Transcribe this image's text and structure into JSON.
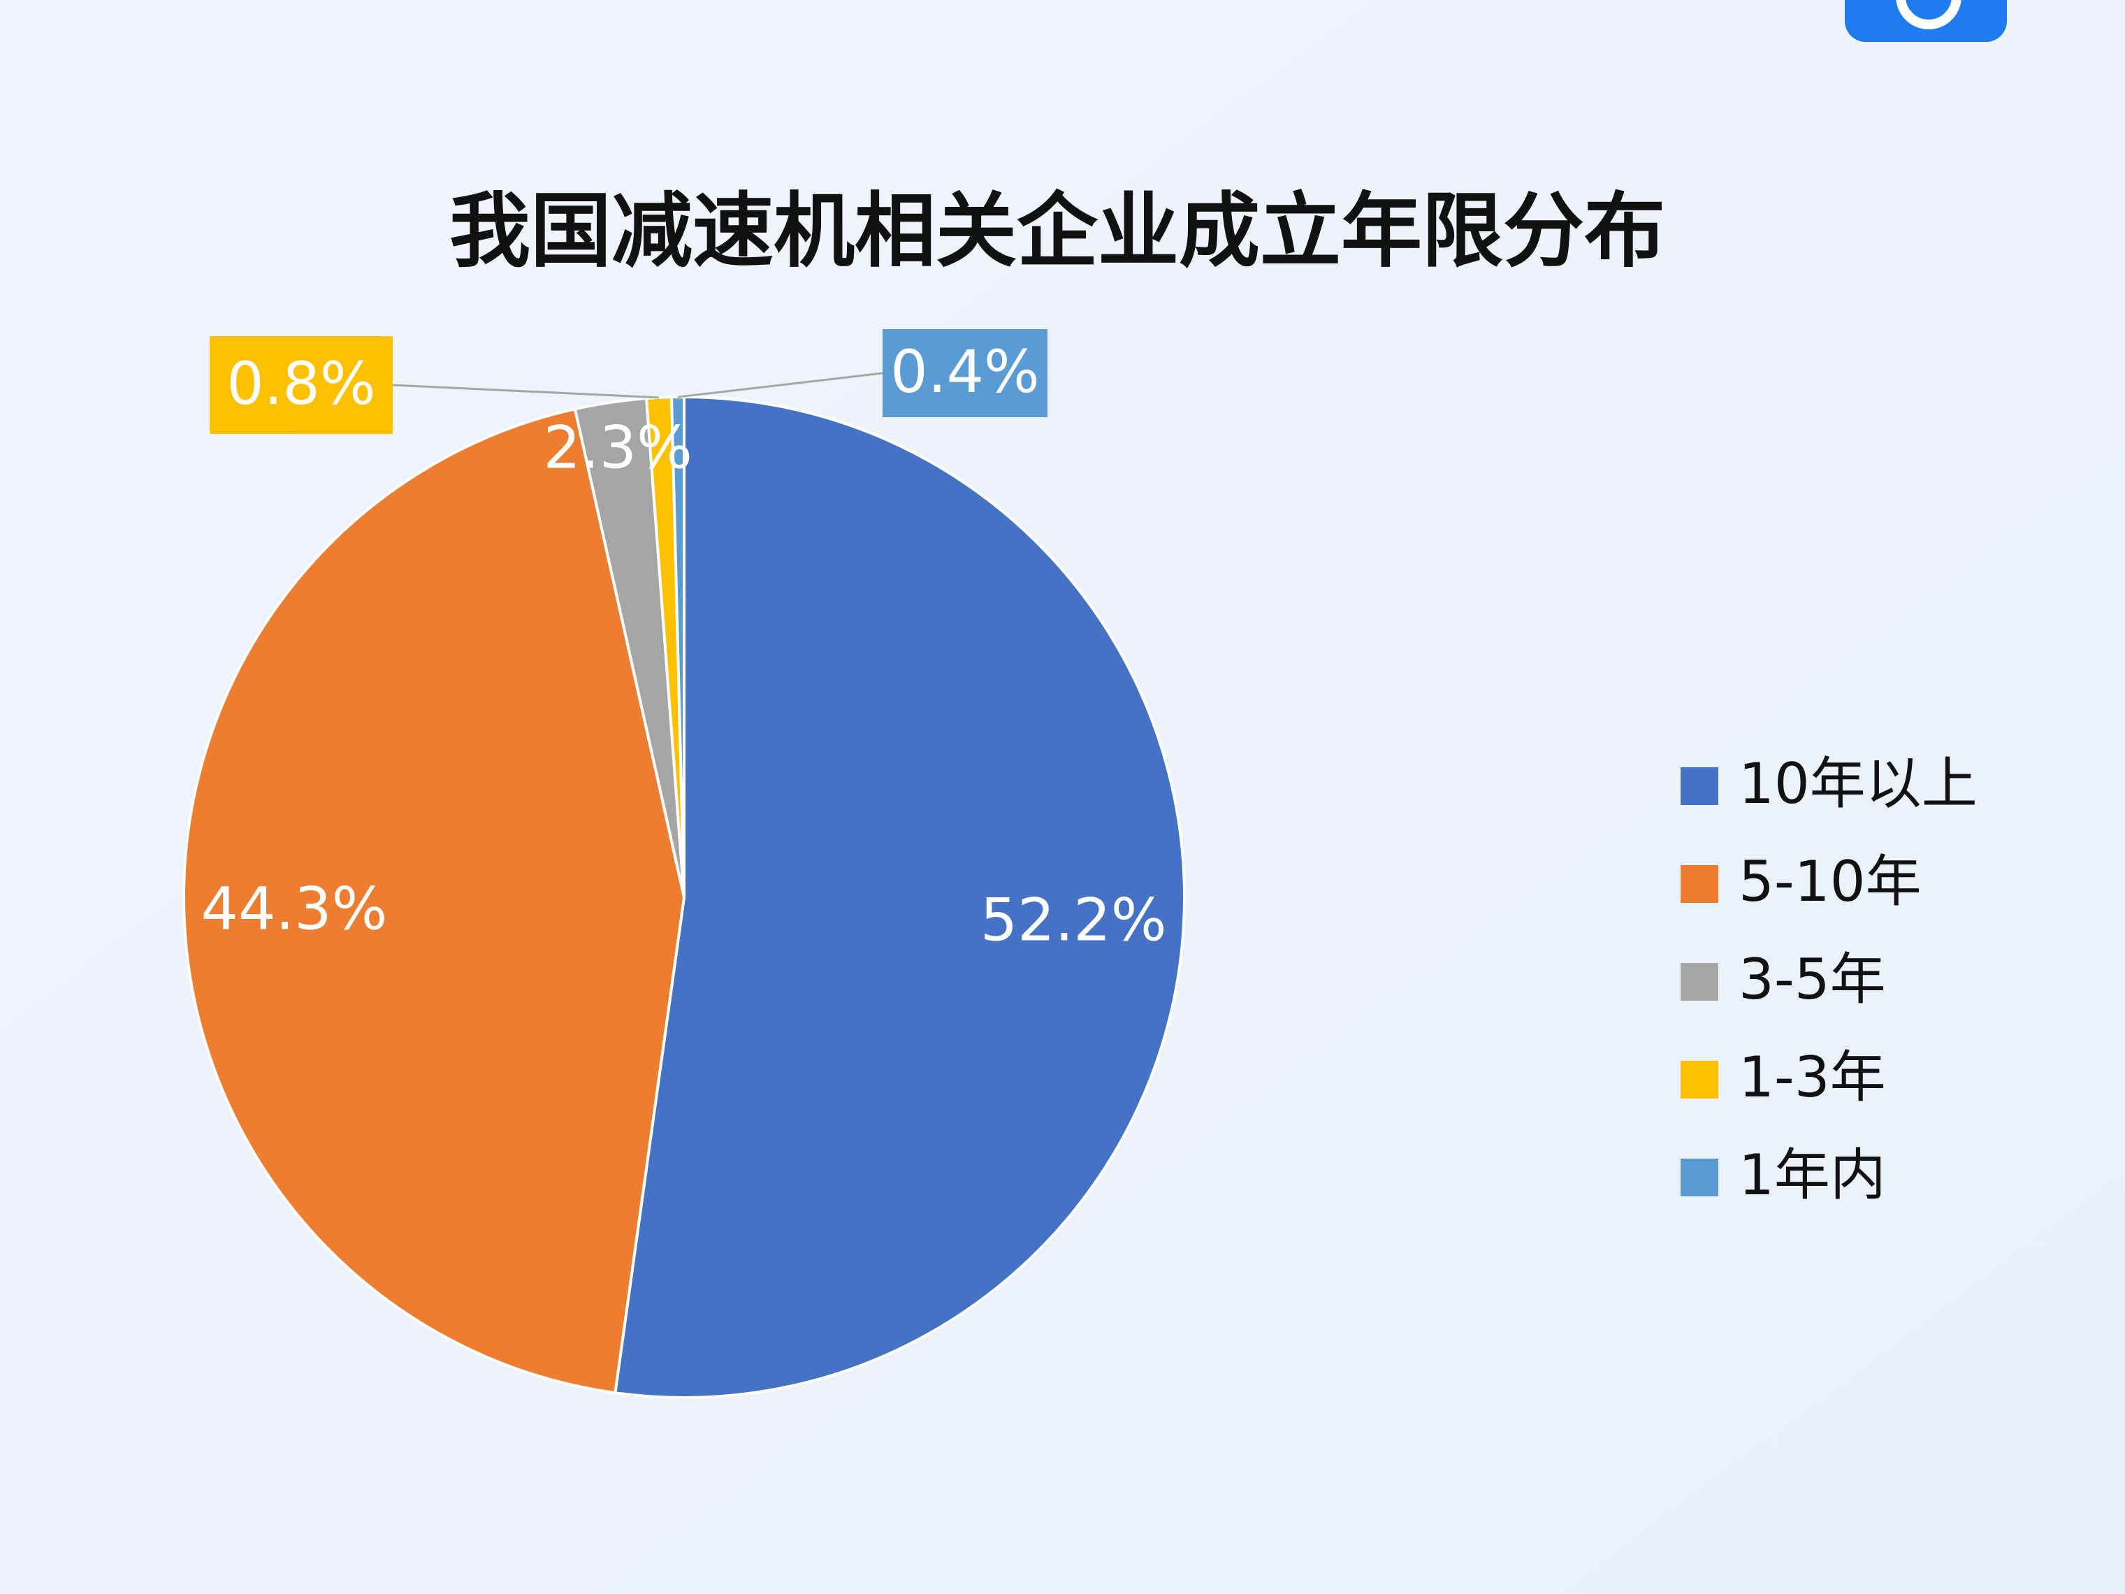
{
  "chart_data": {
    "type": "pie",
    "title": "我国减速机相关企业成立年限分布",
    "categories": [
      "10年以上",
      "5-10年",
      "3-5年",
      "1-3年",
      "1年内"
    ],
    "values": [
      52.2,
      44.3,
      2.3,
      0.8,
      0.4
    ],
    "value_labels": [
      "52.2%",
      "44.3%",
      "2.3%",
      "0.8%",
      "0.4%"
    ],
    "colors": [
      "#4472c4",
      "#ed7d31",
      "#a5a5a5",
      "#ffc000",
      "#5b9bd5"
    ],
    "legend": "right"
  }
}
